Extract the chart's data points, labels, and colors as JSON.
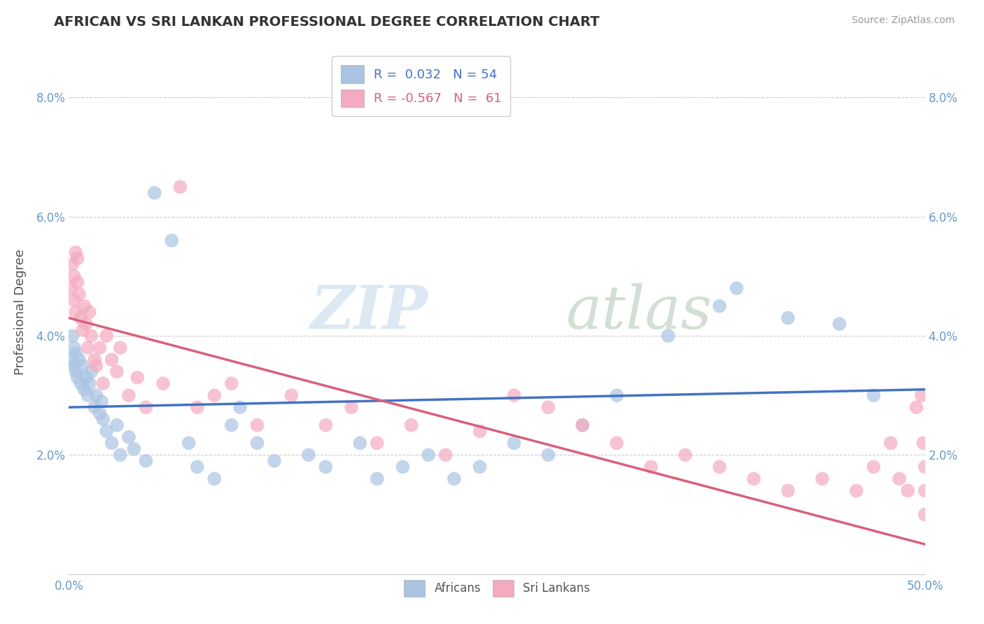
{
  "title": "AFRICAN VS SRI LANKAN PROFESSIONAL DEGREE CORRELATION CHART",
  "source": "Source: ZipAtlas.com",
  "ylabel": "Professional Degree",
  "xlim": [
    0.0,
    0.5
  ],
  "ylim": [
    0.0,
    0.088
  ],
  "xtick_vals": [
    0.0,
    0.1,
    0.2,
    0.3,
    0.4,
    0.5
  ],
  "xticklabels": [
    "0.0%",
    "",
    "",
    "",
    "",
    "50.0%"
  ],
  "ytick_vals": [
    0.0,
    0.02,
    0.04,
    0.06,
    0.08
  ],
  "yticklabels_left": [
    "",
    "2.0%",
    "4.0%",
    "6.0%",
    "8.0%"
  ],
  "yticklabels_right": [
    "",
    "2.0%",
    "4.0%",
    "6.0%",
    "8.0%"
  ],
  "african_color": "#aac4e2",
  "srilankan_color": "#f5aabf",
  "african_line_color": "#4472c4",
  "srilankan_line_color": "#d9607a",
  "african_R": 0.032,
  "african_N": 54,
  "srilankan_R": -0.567,
  "srilankan_N": 61,
  "legend_R1": "R =  0.032",
  "legend_N1": "N = 54",
  "legend_R2": "R = -0.567",
  "legend_N2": "N =  61",
  "african_x": [
    0.001,
    0.002,
    0.003,
    0.003,
    0.004,
    0.004,
    0.005,
    0.006,
    0.007,
    0.008,
    0.009,
    0.01,
    0.011,
    0.012,
    0.013,
    0.015,
    0.016,
    0.018,
    0.019,
    0.02,
    0.022,
    0.025,
    0.028,
    0.03,
    0.035,
    0.038,
    0.045,
    0.05,
    0.06,
    0.07,
    0.075,
    0.085,
    0.095,
    0.1,
    0.11,
    0.12,
    0.14,
    0.15,
    0.17,
    0.18,
    0.195,
    0.21,
    0.225,
    0.24,
    0.26,
    0.28,
    0.3,
    0.32,
    0.35,
    0.38,
    0.39,
    0.42,
    0.45,
    0.47
  ],
  "african_y": [
    0.036,
    0.04,
    0.035,
    0.038,
    0.034,
    0.037,
    0.033,
    0.036,
    0.032,
    0.035,
    0.031,
    0.033,
    0.03,
    0.032,
    0.034,
    0.028,
    0.03,
    0.027,
    0.029,
    0.026,
    0.024,
    0.022,
    0.025,
    0.02,
    0.023,
    0.021,
    0.019,
    0.064,
    0.056,
    0.022,
    0.018,
    0.016,
    0.025,
    0.028,
    0.022,
    0.019,
    0.02,
    0.018,
    0.022,
    0.016,
    0.018,
    0.02,
    0.016,
    0.018,
    0.022,
    0.02,
    0.025,
    0.03,
    0.04,
    0.045,
    0.048,
    0.043,
    0.042,
    0.03
  ],
  "srilankan_x": [
    0.001,
    0.002,
    0.003,
    0.003,
    0.004,
    0.004,
    0.005,
    0.005,
    0.006,
    0.007,
    0.008,
    0.009,
    0.01,
    0.011,
    0.012,
    0.013,
    0.015,
    0.016,
    0.018,
    0.02,
    0.022,
    0.025,
    0.028,
    0.03,
    0.035,
    0.04,
    0.045,
    0.055,
    0.065,
    0.075,
    0.085,
    0.095,
    0.11,
    0.13,
    0.15,
    0.165,
    0.18,
    0.2,
    0.22,
    0.24,
    0.26,
    0.28,
    0.3,
    0.32,
    0.34,
    0.36,
    0.38,
    0.4,
    0.42,
    0.44,
    0.46,
    0.47,
    0.48,
    0.485,
    0.49,
    0.495,
    0.498,
    0.499,
    0.5,
    0.5,
    0.5
  ],
  "srilankan_y": [
    0.048,
    0.052,
    0.046,
    0.05,
    0.054,
    0.044,
    0.049,
    0.053,
    0.047,
    0.043,
    0.041,
    0.045,
    0.042,
    0.038,
    0.044,
    0.04,
    0.036,
    0.035,
    0.038,
    0.032,
    0.04,
    0.036,
    0.034,
    0.038,
    0.03,
    0.033,
    0.028,
    0.032,
    0.065,
    0.028,
    0.03,
    0.032,
    0.025,
    0.03,
    0.025,
    0.028,
    0.022,
    0.025,
    0.02,
    0.024,
    0.03,
    0.028,
    0.025,
    0.022,
    0.018,
    0.02,
    0.018,
    0.016,
    0.014,
    0.016,
    0.014,
    0.018,
    0.022,
    0.016,
    0.014,
    0.028,
    0.03,
    0.022,
    0.018,
    0.014,
    0.01
  ],
  "african_line_x0": 0.0,
  "african_line_y0": 0.028,
  "african_line_x1": 0.5,
  "african_line_y1": 0.031,
  "srilankan_line_x0": 0.0,
  "srilankan_line_y0": 0.043,
  "srilankan_line_x1": 0.5,
  "srilankan_line_y1": 0.005
}
